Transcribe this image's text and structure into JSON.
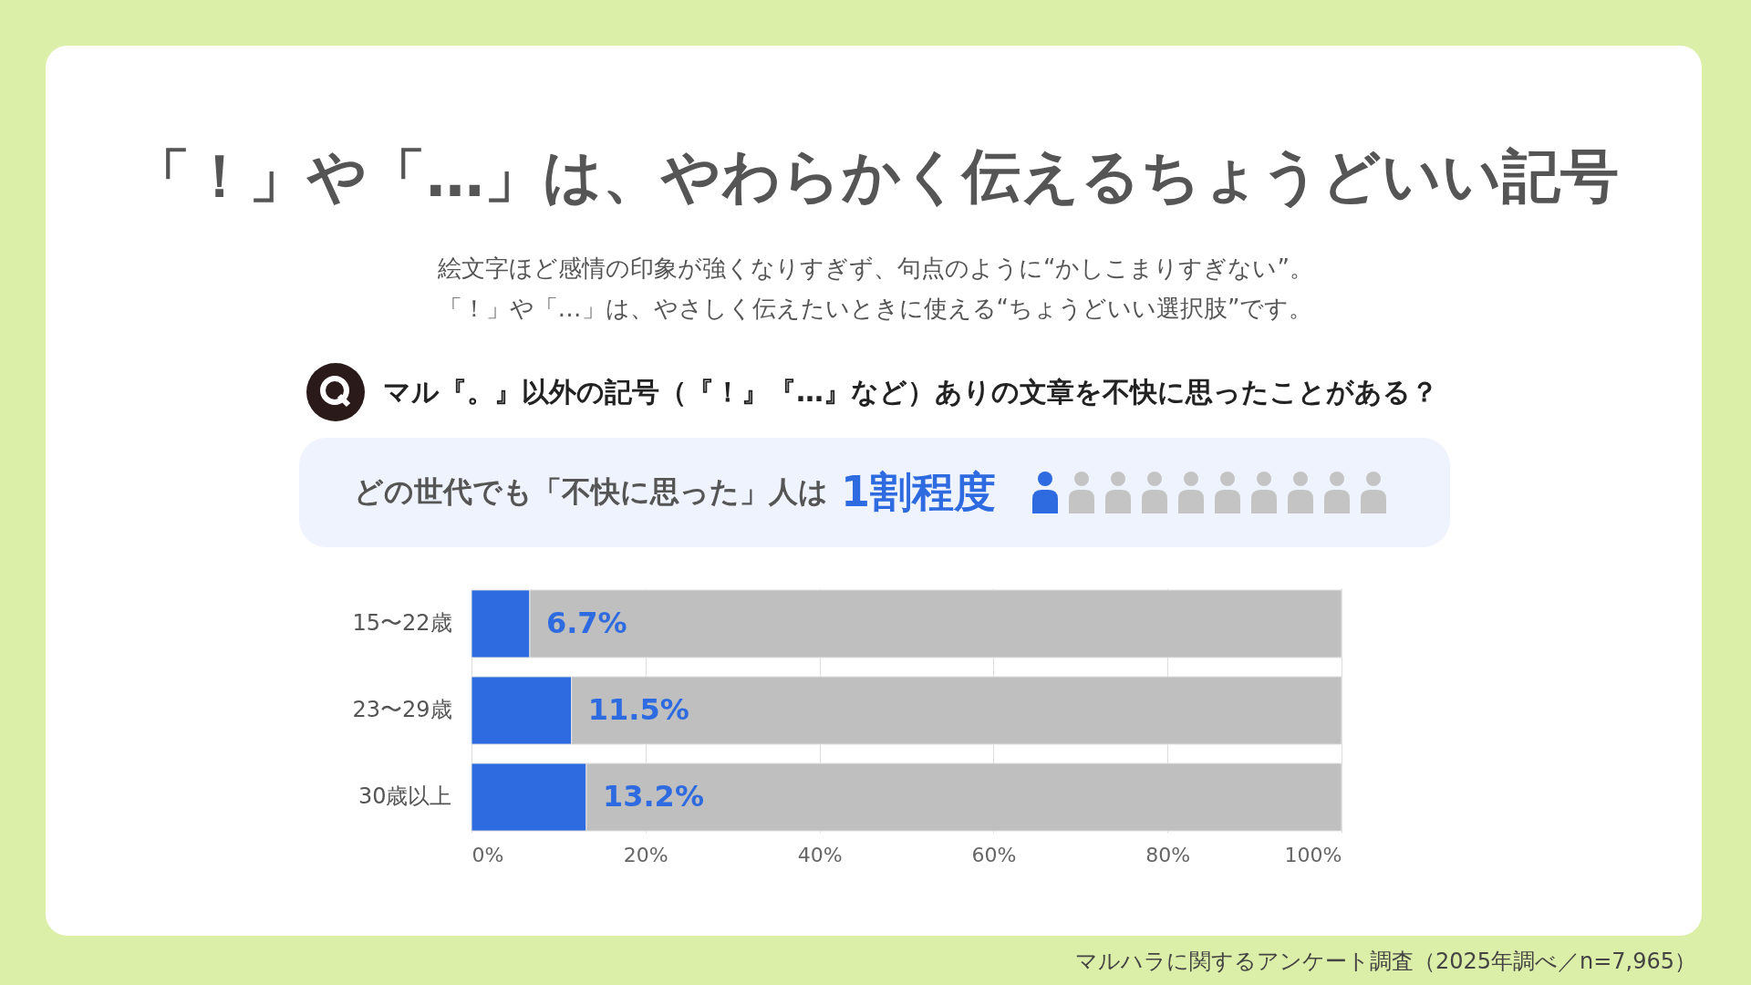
{
  "chart_data": {
    "type": "bar",
    "orientation": "horizontal",
    "stacked": true,
    "title": "「！」や「…」は、やわらかく伝えるちょうどいい記号",
    "subtitle": "絵文字ほど感情の印象が強くなりすぎず、句点のように“かしこまりすぎない”。",
    "annotations": [
      "「！」や「…」は、やさしく伝えたいときに使える“ちょうどいい選択肢”です。",
      "マル『。』以外の記号（『！』『…』など）ありの文章を不快に思ったことがある？",
      "どの世代でも「不快に思った」人は",
      "1割程度",
      "マルハラに関するアンケート調査（2025年調べ／n=7,965）"
    ],
    "categories": [
      "15〜22歳",
      "23〜29歳",
      "30歳以上"
    ],
    "series": [
      {
        "color": "#2f6be0",
        "values": [
          6.7,
          11.5,
          13.2
        ],
        "value_labels": [
          "6.7%",
          "11.5%",
          "13.2%"
        ]
      },
      {
        "color": "#bfbfbf",
        "values": [
          93.3,
          88.5,
          86.8
        ]
      }
    ],
    "xlim": [
      0,
      100
    ],
    "xticks": [
      {
        "value": 0,
        "label": "0%"
      },
      {
        "value": 20,
        "label": "20%"
      },
      {
        "value": 40,
        "label": "40%"
      },
      {
        "value": 60,
        "label": "60%"
      },
      {
        "value": 80,
        "label": "80%"
      },
      {
        "value": 100,
        "label": "100%"
      }
    ],
    "grid": "x"
  }
}
